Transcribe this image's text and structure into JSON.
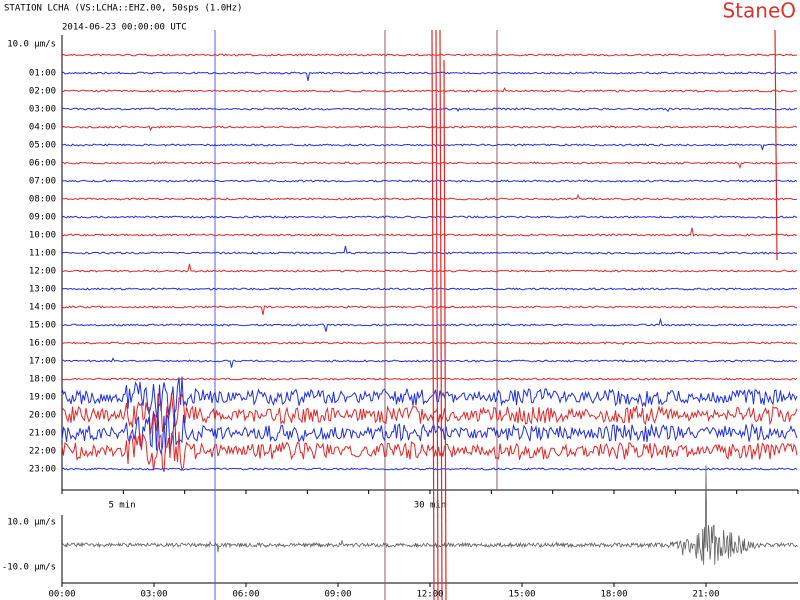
{
  "header": {
    "station": "STATION LCHA (VS:LCHA::EHZ.00, 50sps (1.0Hz)",
    "date": "2014-06-23 00:00:00 UTC",
    "logo": "StaneO"
  },
  "helicorder": {
    "scale_label": "10.0 µm/s",
    "hour_labels": [
      "01:00",
      "02:00",
      "03:00",
      "04:00",
      "05:00",
      "06:00",
      "07:00",
      "08:00",
      "09:00",
      "10:00",
      "11:00",
      "12:00",
      "13:00",
      "14:00",
      "15:00",
      "16:00",
      "17:00",
      "18:00",
      "19:00",
      "20:00",
      "21:00",
      "22:00",
      "23:00"
    ],
    "minute_labels": [
      "5 min",
      "30 min"
    ]
  },
  "overview": {
    "top_label": "10.0 µm/s",
    "bottom_label": "-10.0 µm/s",
    "time_labels": [
      "00:00",
      "03:00",
      "06:00",
      "09:00",
      "12:00",
      "15:00",
      "18:00",
      "21:00"
    ]
  }
}
